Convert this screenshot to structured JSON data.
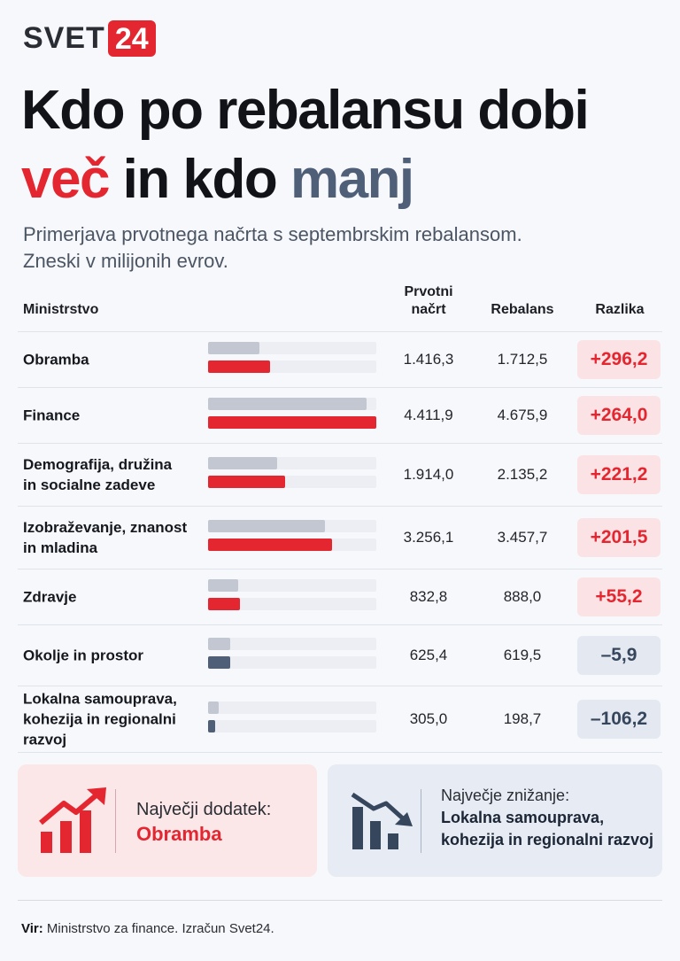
{
  "brand": {
    "name": "SVET",
    "number": "24",
    "accent": "#e3262f"
  },
  "title": {
    "line1": "Kdo po rebalansu dobi",
    "red": "več",
    "mid": " in kdo ",
    "slate": "manj"
  },
  "subtitle": {
    "line1": "Primerjava prvotnega načrta s septembrskim rebalansom.",
    "line2": "Zneski v milijonih evrov."
  },
  "headers": {
    "ministry": "Ministrstvo",
    "original_line1": "Prvotni",
    "original_line2": "načrt",
    "rebalance": "Rebalans",
    "diff": "Razlika"
  },
  "chart_data": {
    "type": "bar",
    "categories": [
      "Obramba",
      "Finance",
      "Demografija, družina in socialne zadeve",
      "Izobraževanje, znanost in mladina",
      "Zdravje",
      "Okolje in prostor",
      "Lokalna samouprava, kohezija in regionalni razvoj"
    ],
    "series": [
      {
        "name": "Prvotni načrt",
        "values": [
          1416.3,
          4411.9,
          1914.0,
          3256.1,
          832.8,
          625.4,
          305.0
        ]
      },
      {
        "name": "Rebalans",
        "values": [
          1712.5,
          4675.9,
          2135.2,
          3457.7,
          888.0,
          619.5,
          198.7
        ]
      }
    ],
    "differences": [
      296.2,
      264.0,
      221.2,
      201.5,
      55.2,
      -5.9,
      -106.2
    ],
    "colors": {
      "original": "#c2c7d1",
      "increase": "#e3262f",
      "decrease": "#4f5f78"
    }
  },
  "rows": [
    {
      "label_lines": [
        "Obramba"
      ],
      "original": "1.416,3",
      "rebalance": "1.712,5",
      "diff": "+296,2"
    },
    {
      "label_lines": [
        "Finance"
      ],
      "original": "4.411,9",
      "rebalance": "4.675,9",
      "diff": "+264,0"
    },
    {
      "label_lines": [
        "Demografija, družina",
        "in socialne zadeve"
      ],
      "original": "1.914,0",
      "rebalance": "2.135,2",
      "diff": "+221,2"
    },
    {
      "label_lines": [
        "Izobraževanje, znanost",
        "in mladina"
      ],
      "original": "3.256,1",
      "rebalance": "3.457,7",
      "diff": "+201,5"
    },
    {
      "label_lines": [
        "Zdravje"
      ],
      "original": "832,8",
      "rebalance": "888,0",
      "diff": "+55,2"
    },
    {
      "label_lines": [
        "Okolje in prostor"
      ],
      "original": "625,4",
      "rebalance": "619,5",
      "diff": "–5,9"
    },
    {
      "label_lines": [
        "Lokalna samouprava,",
        "kohezija in regionalni razvoj"
      ],
      "original": "305,0",
      "rebalance": "198,7",
      "diff": "–106,2"
    }
  ],
  "cards": {
    "increase": {
      "icon": "rising-chart-icon",
      "label": "Največji dodatek:",
      "value": "Obramba"
    },
    "decrease": {
      "icon": "falling-chart-icon",
      "label": "Največje znižanje:",
      "value_line1": "Lokalna samouprava,",
      "value_line2": "kohezija in regionalni razvoj"
    }
  },
  "source": {
    "label": "Vir:",
    "text": " Ministrstvo za finance. Izračun Svet24."
  }
}
